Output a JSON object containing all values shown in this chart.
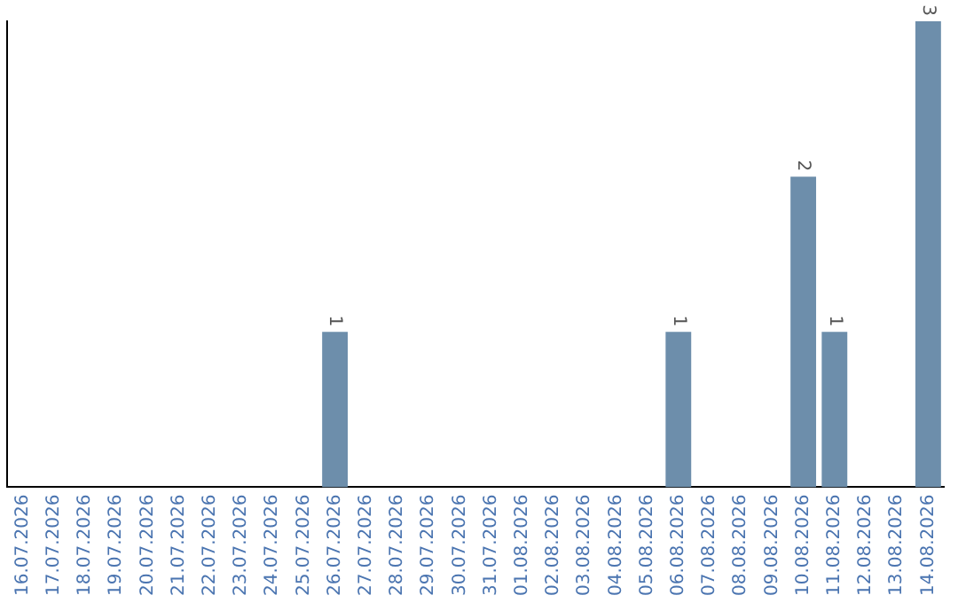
{
  "chart_data": {
    "type": "bar",
    "categories": [
      "16.07.2026",
      "17.07.2026",
      "18.07.2026",
      "19.07.2026",
      "20.07.2026",
      "21.07.2026",
      "22.07.2026",
      "23.07.2026",
      "24.07.2026",
      "25.07.2026",
      "26.07.2026",
      "27.07.2026",
      "28.07.2026",
      "29.07.2026",
      "30.07.2026",
      "31.07.2026",
      "01.08.2026",
      "02.08.2026",
      "03.08.2026",
      "04.08.2026",
      "05.08.2026",
      "06.08.2026",
      "07.08.2026",
      "08.08.2026",
      "09.08.2026",
      "10.08.2026",
      "11.08.2026",
      "12.08.2026",
      "13.08.2026",
      "14.08.2026"
    ],
    "values": [
      0,
      0,
      0,
      0,
      0,
      0,
      0,
      0,
      0,
      0,
      1,
      0,
      0,
      0,
      0,
      0,
      0,
      0,
      0,
      0,
      0,
      1,
      0,
      0,
      0,
      2,
      1,
      0,
      0,
      3
    ],
    "color": "#6d8eab",
    "value_labels": [
      null,
      null,
      null,
      null,
      null,
      null,
      null,
      null,
      null,
      null,
      "1",
      null,
      null,
      null,
      null,
      null,
      null,
      null,
      null,
      null,
      null,
      "1",
      null,
      null,
      null,
      "2",
      "1",
      null,
      null,
      "3"
    ],
    "grid": false,
    "legend": false,
    "tick_labels": "x"
  }
}
